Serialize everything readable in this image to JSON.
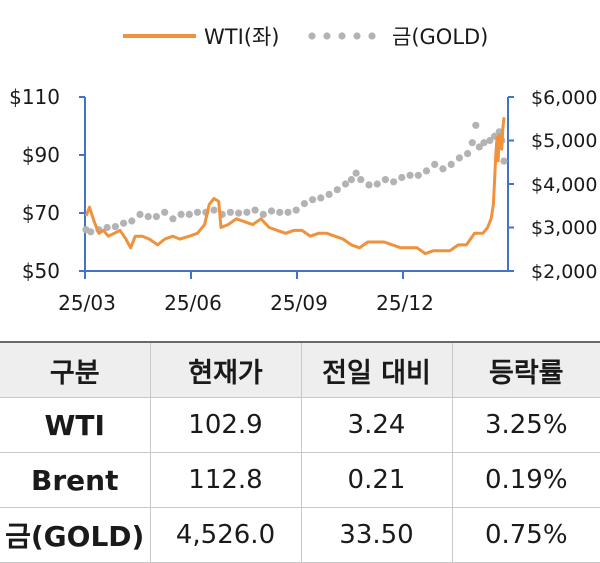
{
  "chart_data": {
    "type": "line",
    "legend": {
      "placement": "top",
      "entries": [
        {
          "name": "WTI(좌)",
          "color": "#f0913b",
          "style": "solid"
        },
        {
          "name": "금(GOLD)",
          "color": "#b3b3b3",
          "style": "dotted"
        }
      ]
    },
    "x_ticks": [
      "25/03",
      "25/06",
      "25/09",
      "25/12"
    ],
    "x_range": [
      "2025-03-01",
      "2026-02-20"
    ],
    "y_left": {
      "ticks": [
        "$110",
        "$90",
        "$70",
        "$50"
      ],
      "range": [
        50,
        110
      ]
    },
    "y_right": {
      "ticks": [
        "$6,000",
        "$5,000",
        "$4,000",
        "$3,000",
        "$2,000"
      ],
      "range": [
        2000,
        6000
      ]
    },
    "grid": false,
    "series": [
      {
        "name": "WTI(좌)",
        "axis": "left",
        "color": "#f0913b",
        "points": [
          [
            "2025-03-01",
            69
          ],
          [
            "2025-03-04",
            72
          ],
          [
            "2025-03-08",
            67
          ],
          [
            "2025-03-12",
            63
          ],
          [
            "2025-03-16",
            64
          ],
          [
            "2025-03-20",
            62
          ],
          [
            "2025-03-25",
            63
          ],
          [
            "2025-03-30",
            64
          ],
          [
            "2025-04-04",
            61
          ],
          [
            "2025-04-08",
            58
          ],
          [
            "2025-04-12",
            62
          ],
          [
            "2025-04-18",
            62
          ],
          [
            "2025-04-24",
            61
          ],
          [
            "2025-05-01",
            59
          ],
          [
            "2025-05-07",
            61
          ],
          [
            "2025-05-14",
            62
          ],
          [
            "2025-05-20",
            61
          ],
          [
            "2025-05-28",
            62
          ],
          [
            "2025-06-04",
            63
          ],
          [
            "2025-06-10",
            66
          ],
          [
            "2025-06-14",
            73
          ],
          [
            "2025-06-18",
            75
          ],
          [
            "2025-06-22",
            74
          ],
          [
            "2025-06-24",
            65
          ],
          [
            "2025-06-30",
            66
          ],
          [
            "2025-07-07",
            68
          ],
          [
            "2025-07-14",
            67
          ],
          [
            "2025-07-21",
            66
          ],
          [
            "2025-07-28",
            68
          ],
          [
            "2025-08-04",
            65
          ],
          [
            "2025-08-11",
            64
          ],
          [
            "2025-08-18",
            63
          ],
          [
            "2025-08-25",
            64
          ],
          [
            "2025-09-01",
            64
          ],
          [
            "2025-09-08",
            62
          ],
          [
            "2025-09-15",
            63
          ],
          [
            "2025-09-22",
            63
          ],
          [
            "2025-09-29",
            62
          ],
          [
            "2025-10-06",
            61
          ],
          [
            "2025-10-13",
            59
          ],
          [
            "2025-10-20",
            58
          ],
          [
            "2025-10-27",
            60
          ],
          [
            "2025-11-03",
            60
          ],
          [
            "2025-11-10",
            60
          ],
          [
            "2025-11-17",
            59
          ],
          [
            "2025-11-24",
            58
          ],
          [
            "2025-12-01",
            58
          ],
          [
            "2025-12-08",
            58
          ],
          [
            "2025-12-15",
            56
          ],
          [
            "2025-12-22",
            57
          ],
          [
            "2025-12-29",
            57
          ],
          [
            "2026-01-05",
            57
          ],
          [
            "2026-01-12",
            59
          ],
          [
            "2026-01-19",
            59
          ],
          [
            "2026-01-26",
            63
          ],
          [
            "2026-02-02",
            63
          ],
          [
            "2026-02-06",
            65
          ],
          [
            "2026-02-09",
            68
          ],
          [
            "2026-02-11",
            73
          ],
          [
            "2026-02-13",
            90
          ],
          [
            "2026-02-14",
            96
          ],
          [
            "2026-02-15",
            88
          ],
          [
            "2026-02-16",
            97
          ],
          [
            "2026-02-17",
            93
          ],
          [
            "2026-02-18",
            92
          ],
          [
            "2026-02-19",
            99
          ],
          [
            "2026-02-20",
            103
          ]
        ]
      },
      {
        "name": "금(GOLD)",
        "axis": "right",
        "color": "#b3b3b3",
        "points": [
          [
            "2025-03-01",
            2950
          ],
          [
            "2025-03-05",
            2900
          ],
          [
            "2025-03-12",
            2950
          ],
          [
            "2025-03-19",
            3000
          ],
          [
            "2025-03-26",
            3020
          ],
          [
            "2025-04-02",
            3100
          ],
          [
            "2025-04-09",
            3150
          ],
          [
            "2025-04-16",
            3300
          ],
          [
            "2025-04-23",
            3250
          ],
          [
            "2025-04-30",
            3250
          ],
          [
            "2025-05-07",
            3350
          ],
          [
            "2025-05-14",
            3200
          ],
          [
            "2025-05-21",
            3300
          ],
          [
            "2025-05-28",
            3300
          ],
          [
            "2025-06-04",
            3350
          ],
          [
            "2025-06-11",
            3350
          ],
          [
            "2025-06-18",
            3400
          ],
          [
            "2025-06-25",
            3300
          ],
          [
            "2025-07-02",
            3350
          ],
          [
            "2025-07-09",
            3330
          ],
          [
            "2025-07-16",
            3350
          ],
          [
            "2025-07-23",
            3400
          ],
          [
            "2025-07-30",
            3300
          ],
          [
            "2025-08-06",
            3380
          ],
          [
            "2025-08-13",
            3350
          ],
          [
            "2025-08-20",
            3350
          ],
          [
            "2025-08-27",
            3400
          ],
          [
            "2025-09-03",
            3550
          ],
          [
            "2025-09-10",
            3640
          ],
          [
            "2025-09-17",
            3680
          ],
          [
            "2025-09-24",
            3760
          ],
          [
            "2025-10-01",
            3870
          ],
          [
            "2025-10-08",
            4000
          ],
          [
            "2025-10-13",
            4100
          ],
          [
            "2025-10-17",
            4250
          ],
          [
            "2025-10-21",
            4100
          ],
          [
            "2025-10-28",
            3980
          ],
          [
            "2025-11-04",
            4000
          ],
          [
            "2025-11-11",
            4100
          ],
          [
            "2025-11-18",
            4050
          ],
          [
            "2025-11-25",
            4150
          ],
          [
            "2025-12-02",
            4200
          ],
          [
            "2025-12-09",
            4200
          ],
          [
            "2025-12-16",
            4300
          ],
          [
            "2025-12-23",
            4450
          ],
          [
            "2025-12-30",
            4350
          ],
          [
            "2026-01-06",
            4450
          ],
          [
            "2026-01-13",
            4600
          ],
          [
            "2026-01-20",
            4700
          ],
          [
            "2026-01-24",
            4950
          ],
          [
            "2026-01-27",
            5350
          ],
          [
            "2026-01-30",
            4850
          ],
          [
            "2026-02-03",
            4950
          ],
          [
            "2026-02-08",
            5000
          ],
          [
            "2026-02-12",
            5100
          ],
          [
            "2026-02-16",
            5200
          ],
          [
            "2026-02-18",
            5000
          ],
          [
            "2026-02-20",
            4526
          ]
        ]
      }
    ]
  },
  "table": {
    "headers": [
      "구분",
      "현재가",
      "전일 대비",
      "등락률"
    ],
    "rows": [
      {
        "name": "WTI",
        "price": "102.9",
        "change": "3.24",
        "rate": "3.25%"
      },
      {
        "name": "Brent",
        "price": "112.8",
        "change": "0.21",
        "rate": "0.19%"
      },
      {
        "name": "금(GOLD)",
        "price": "4,526.0",
        "change": "33.50",
        "rate": "0.75%"
      }
    ]
  }
}
